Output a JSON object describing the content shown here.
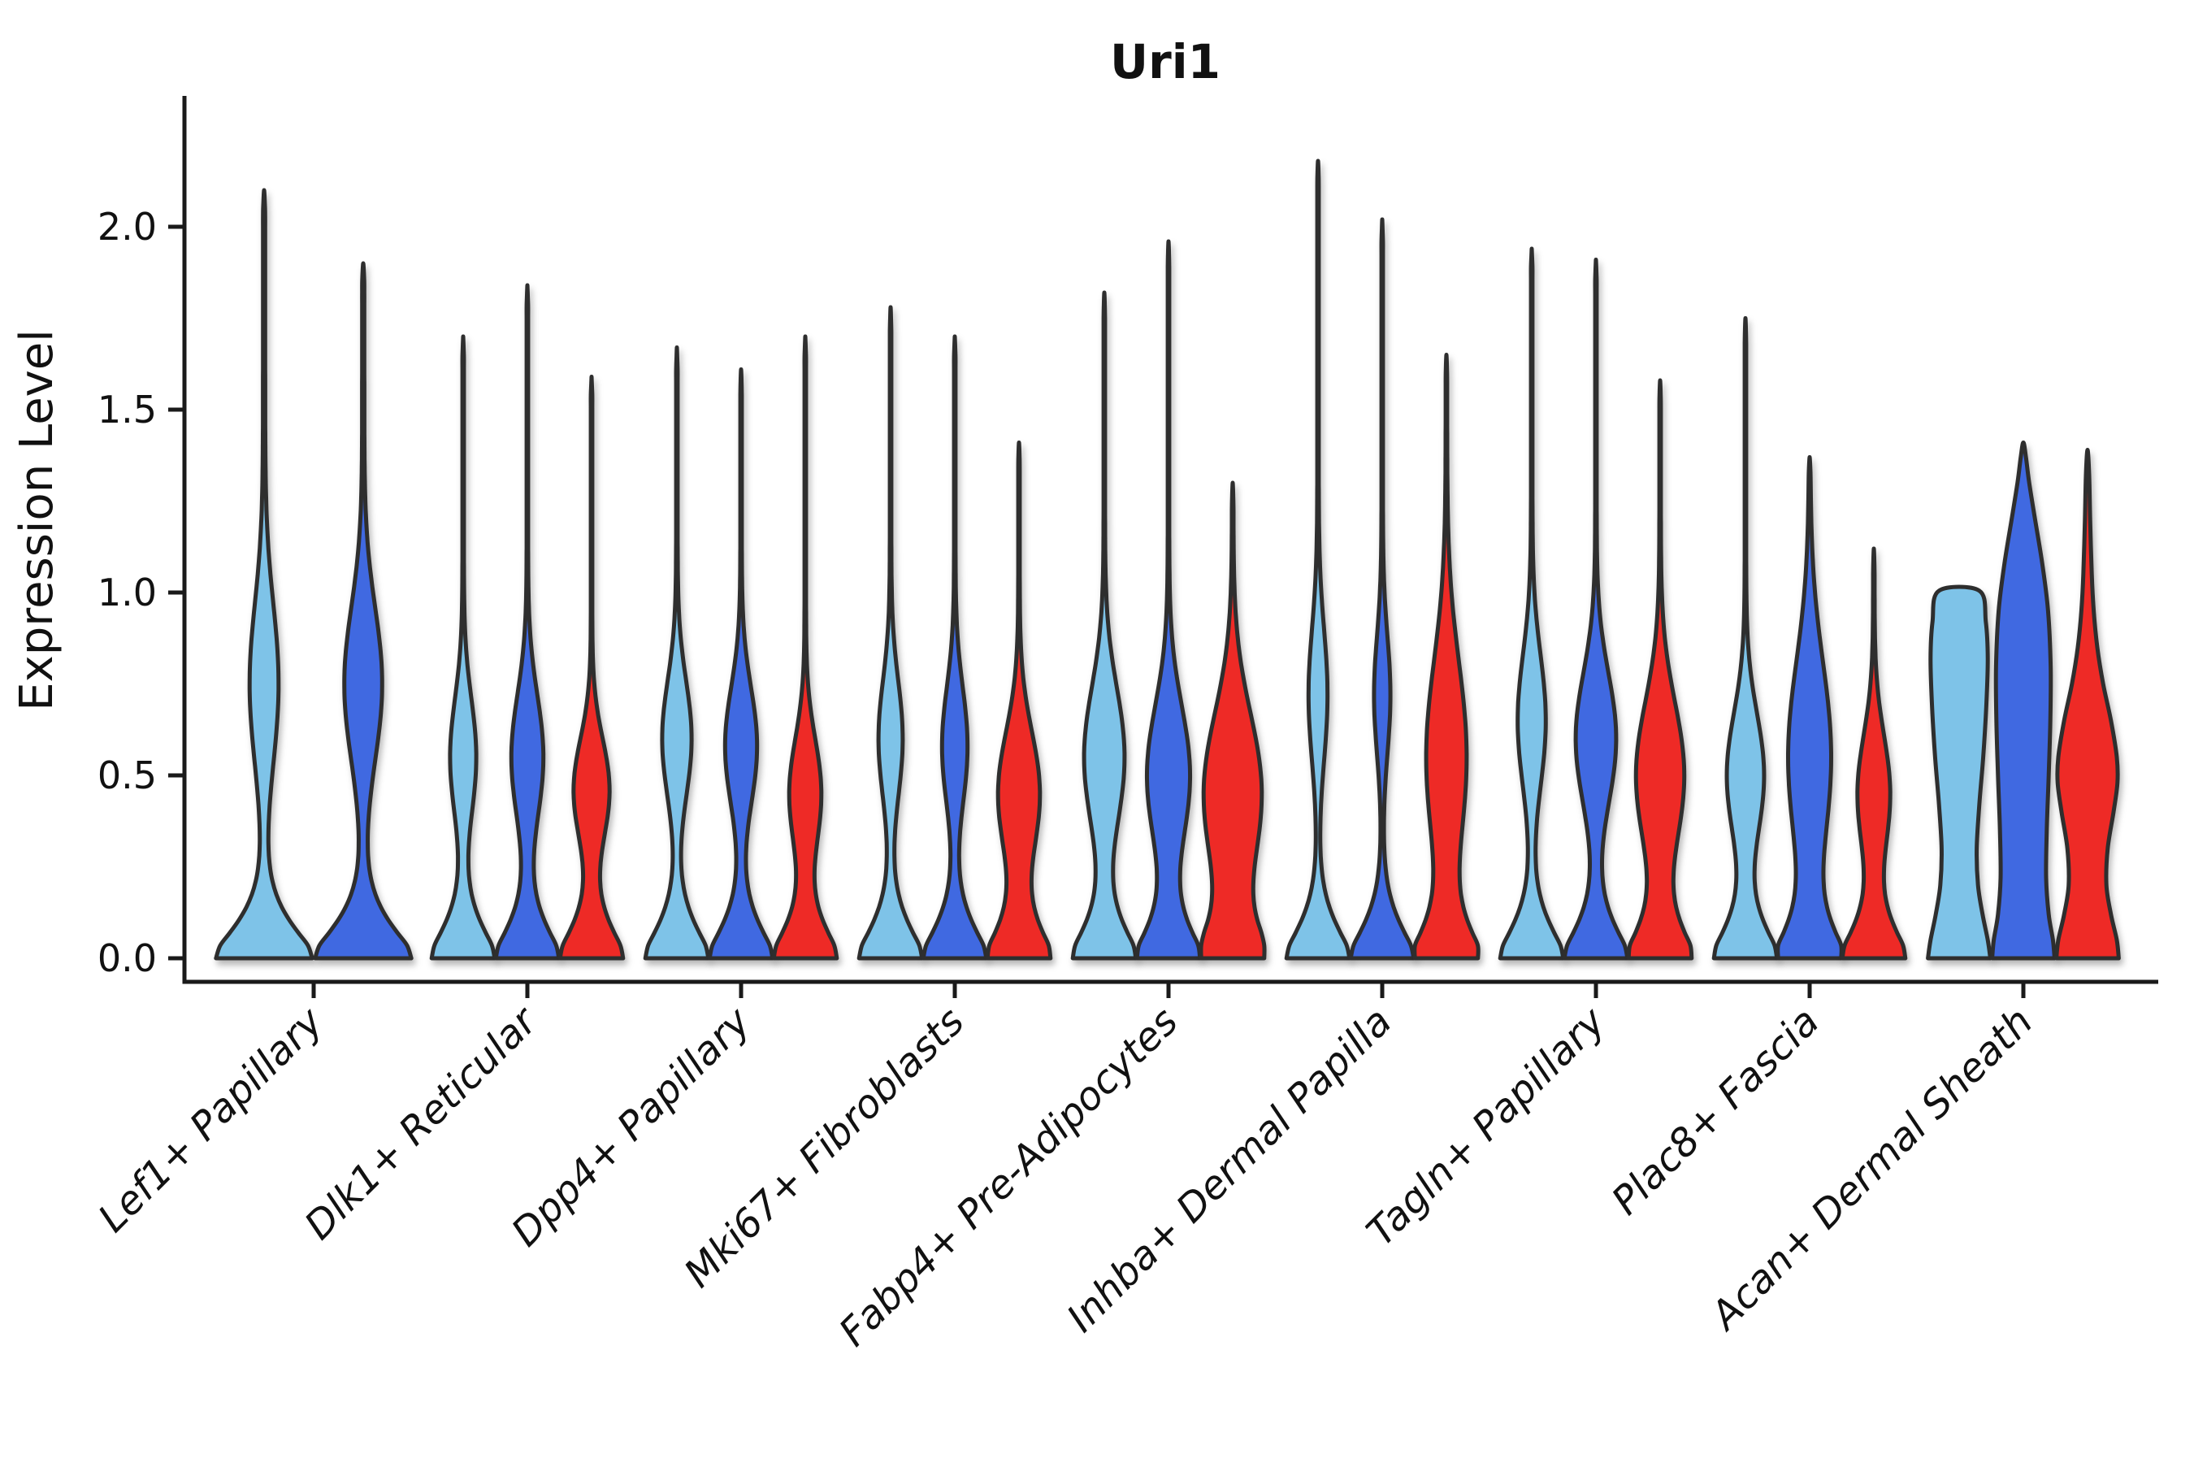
{
  "figure": {
    "background": "#ffffff",
    "title": "Uri1",
    "ylabel": "Expression Level"
  },
  "chart_data": {
    "type": "violin",
    "title": "Uri1",
    "xlabel": "",
    "ylabel": "Expression Level",
    "ylim": [
      -0.06,
      2.36
    ],
    "yticks": [
      0.0,
      0.5,
      1.0,
      1.5,
      2.0
    ],
    "ytick_labels": [
      "0.0",
      "0.5",
      "1.0",
      "1.5",
      "2.0"
    ],
    "grid": false,
    "legend_position": "none",
    "outline_color": "#2E2E2E",
    "spine_color": "#1a1a1a",
    "hues": [
      {
        "key": "light-blue",
        "color": "#7EC3E8"
      },
      {
        "key": "dark-blue",
        "color": "#3F69E1"
      },
      {
        "key": "red",
        "color": "#EE2B26"
      }
    ],
    "categories": [
      "Lef1+ Papillary",
      "Dlk1+ Reticular",
      "Dpp4+ Papillary",
      "Mki67+ Fibroblasts",
      "Fabp4+ Pre-Adipocytes",
      "Inhba+ Dermal Papilla",
      "Tagln+ Papillary",
      "Plac8+ Fascia",
      "Acan+ Dermal Sheath"
    ],
    "spike_width": 0.022,
    "violins": [
      {
        "category": "Lef1+ Papillary",
        "hue": "light-blue",
        "max_expression": 2.1,
        "bulge_center": 0.75,
        "bulge_width": 0.27,
        "bulge_spread": 0.22
      },
      {
        "category": "Lef1+ Papillary",
        "hue": "dark-blue",
        "max_expression": 1.9,
        "bulge_center": 0.75,
        "bulge_width": 0.36,
        "bulge_spread": 0.21
      },
      {
        "category": "Dlk1+ Reticular",
        "hue": "light-blue",
        "max_expression": 1.7,
        "bulge_center": 0.55,
        "bulge_width": 0.38,
        "bulge_spread": 0.16
      },
      {
        "category": "Dlk1+ Reticular",
        "hue": "dark-blue",
        "max_expression": 1.84,
        "bulge_center": 0.55,
        "bulge_width": 0.47,
        "bulge_spread": 0.17
      },
      {
        "category": "Dlk1+ Reticular",
        "hue": "red",
        "max_expression": 1.59,
        "bulge_center": 0.46,
        "bulge_width": 0.53,
        "bulge_spread": 0.14
      },
      {
        "category": "Dpp4+ Papillary",
        "hue": "light-blue",
        "max_expression": 1.67,
        "bulge_center": 0.6,
        "bulge_width": 0.43,
        "bulge_spread": 0.16
      },
      {
        "category": "Dpp4+ Papillary",
        "hue": "dark-blue",
        "max_expression": 1.61,
        "bulge_center": 0.58,
        "bulge_width": 0.47,
        "bulge_spread": 0.16
      },
      {
        "category": "Dpp4+ Papillary",
        "hue": "red",
        "max_expression": 1.7,
        "bulge_center": 0.45,
        "bulge_width": 0.47,
        "bulge_spread": 0.15
      },
      {
        "category": "Mki67+ Fibroblasts",
        "hue": "light-blue",
        "max_expression": 1.78,
        "bulge_center": 0.6,
        "bulge_width": 0.35,
        "bulge_spread": 0.16
      },
      {
        "category": "Mki67+ Fibroblasts",
        "hue": "dark-blue",
        "max_expression": 1.7,
        "bulge_center": 0.58,
        "bulge_width": 0.37,
        "bulge_spread": 0.16
      },
      {
        "category": "Mki67+ Fibroblasts",
        "hue": "red",
        "max_expression": 1.41,
        "bulge_center": 0.45,
        "bulge_width": 0.62,
        "bulge_spread": 0.17
      },
      {
        "category": "Fabp4+ Pre-Adipocytes",
        "hue": "light-blue",
        "max_expression": 1.82,
        "bulge_center": 0.55,
        "bulge_width": 0.6,
        "bulge_spread": 0.19
      },
      {
        "category": "Fabp4+ Pre-Adipocytes",
        "hue": "dark-blue",
        "max_expression": 1.96,
        "bulge_center": 0.5,
        "bulge_width": 0.64,
        "bulge_spread": 0.19
      },
      {
        "category": "Fabp4+ Pre-Adipocytes",
        "hue": "red",
        "max_expression": 1.3,
        "bulge_center": 0.45,
        "bulge_width": 0.87,
        "bulge_spread": 0.22
      },
      {
        "category": "Inhba+ Dermal Papilla",
        "hue": "light-blue",
        "max_expression": 2.18,
        "bulge_center": 0.72,
        "bulge_width": 0.27,
        "bulge_spread": 0.18
      },
      {
        "category": "Inhba+ Dermal Papilla",
        "hue": "dark-blue",
        "max_expression": 2.02,
        "bulge_center": 0.72,
        "bulge_width": 0.23,
        "bulge_spread": 0.16
      },
      {
        "category": "Inhba+ Dermal Papilla",
        "hue": "red",
        "max_expression": 1.65,
        "bulge_center": 0.55,
        "bulge_width": 0.6,
        "bulge_spread": 0.26
      },
      {
        "category": "Tagln+ Papillary",
        "hue": "light-blue",
        "max_expression": 1.94,
        "bulge_center": 0.65,
        "bulge_width": 0.41,
        "bulge_spread": 0.18
      },
      {
        "category": "Tagln+ Papillary",
        "hue": "dark-blue",
        "max_expression": 1.91,
        "bulge_center": 0.6,
        "bulge_width": 0.6,
        "bulge_spread": 0.18
      },
      {
        "category": "Tagln+ Papillary",
        "hue": "red",
        "max_expression": 1.58,
        "bulge_center": 0.5,
        "bulge_width": 0.72,
        "bulge_spread": 0.2
      },
      {
        "category": "Plac8+ Fascia",
        "hue": "light-blue",
        "max_expression": 1.75,
        "bulge_center": 0.5,
        "bulge_width": 0.55,
        "bulge_spread": 0.17
      },
      {
        "category": "Plac8+ Fascia",
        "hue": "dark-blue",
        "max_expression": 1.37,
        "bulge_center": 0.55,
        "bulge_width": 0.64,
        "bulge_spread": 0.26
      },
      {
        "category": "Plac8+ Fascia",
        "hue": "red",
        "max_expression": 1.12,
        "bulge_center": 0.45,
        "bulge_width": 0.48,
        "bulge_spread": 0.16
      },
      {
        "category": "Acan+ Dermal Sheath",
        "hue": "light-blue",
        "max_expression": 1.01,
        "flat_top": true,
        "profile": [
          [
            0,
            0.96
          ],
          [
            0.05,
            0.88
          ],
          [
            0.12,
            0.72
          ],
          [
            0.2,
            0.58
          ],
          [
            0.3,
            0.54
          ],
          [
            0.42,
            0.62
          ],
          [
            0.55,
            0.74
          ],
          [
            0.7,
            0.84
          ],
          [
            0.82,
            0.88
          ],
          [
            0.92,
            0.82
          ],
          [
            1.005,
            0.62
          ]
        ]
      },
      {
        "category": "Acan+ Dermal Sheath",
        "hue": "dark-blue",
        "max_expression": 1.41,
        "profile": [
          [
            0,
            0.96
          ],
          [
            0.05,
            0.91
          ],
          [
            0.12,
            0.78
          ],
          [
            0.22,
            0.7
          ],
          [
            0.35,
            0.72
          ],
          [
            0.5,
            0.78
          ],
          [
            0.65,
            0.83
          ],
          [
            0.8,
            0.84
          ],
          [
            0.95,
            0.76
          ],
          [
            1.08,
            0.58
          ],
          [
            1.2,
            0.36
          ],
          [
            1.3,
            0.18
          ],
          [
            1.37,
            0.08
          ],
          [
            1.41,
            0
          ]
        ]
      },
      {
        "category": "Acan+ Dermal Sheath",
        "hue": "red",
        "max_expression": 1.39,
        "profile": [
          [
            0,
            0.96
          ],
          [
            0.05,
            0.9
          ],
          [
            0.12,
            0.72
          ],
          [
            0.2,
            0.58
          ],
          [
            0.3,
            0.62
          ],
          [
            0.4,
            0.8
          ],
          [
            0.48,
            0.92
          ],
          [
            0.55,
            0.9
          ],
          [
            0.65,
            0.72
          ],
          [
            0.75,
            0.48
          ],
          [
            0.85,
            0.3
          ],
          [
            0.95,
            0.19
          ],
          [
            1.05,
            0.13
          ],
          [
            1.2,
            0.08
          ],
          [
            1.32,
            0.05
          ],
          [
            1.39,
            0
          ]
        ]
      }
    ]
  }
}
